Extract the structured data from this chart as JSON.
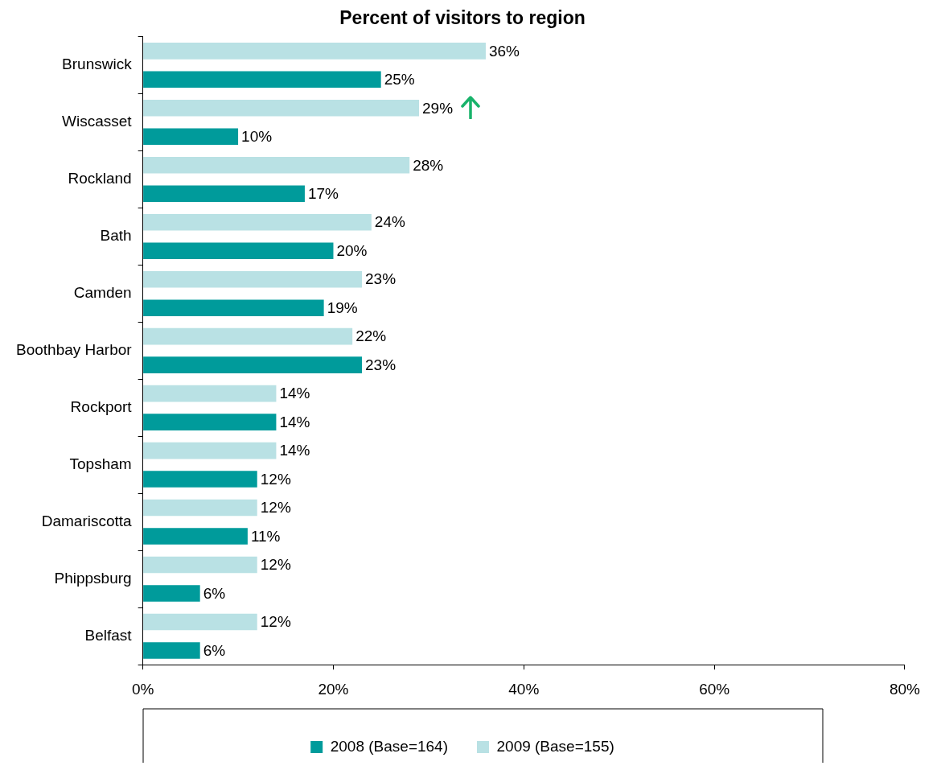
{
  "chart_data": {
    "type": "bar",
    "orientation": "horizontal",
    "title": "Percent of visitors to region",
    "categories": [
      "Brunswick",
      "Wiscasset",
      "Rockland",
      "Bath",
      "Camden",
      "Boothbay Harbor",
      "Rockport",
      "Topsham",
      "Damariscotta",
      "Phippsburg",
      "Belfast"
    ],
    "series": [
      {
        "name": "2009 (Base=155)",
        "color": "#b9e1e4",
        "values": [
          36,
          29,
          28,
          24,
          23,
          22,
          14,
          14,
          12,
          12,
          12
        ],
        "value_labels": [
          "36%",
          "29%",
          "28%",
          "24%",
          "23%",
          "22%",
          "14%",
          "14%",
          "12%",
          "12%",
          "12%"
        ]
      },
      {
        "name": "2008 (Base=164)",
        "color": "#009b9b",
        "values": [
          25,
          10,
          17,
          20,
          19,
          23,
          14,
          12,
          11,
          6,
          6
        ],
        "value_labels": [
          "25%",
          "10%",
          "17%",
          "20%",
          "19%",
          "23%",
          "14%",
          "12%",
          "11%",
          "6%",
          "6%"
        ]
      }
    ],
    "xlim": [
      0,
      80
    ],
    "xticks": [
      {
        "value": 0,
        "label": "0%"
      },
      {
        "value": 20,
        "label": "20%"
      },
      {
        "value": 40,
        "label": "40%"
      },
      {
        "value": 60,
        "label": "60%"
      },
      {
        "value": 80,
        "label": "80%"
      }
    ],
    "grid": false,
    "legend": "bottom"
  }
}
